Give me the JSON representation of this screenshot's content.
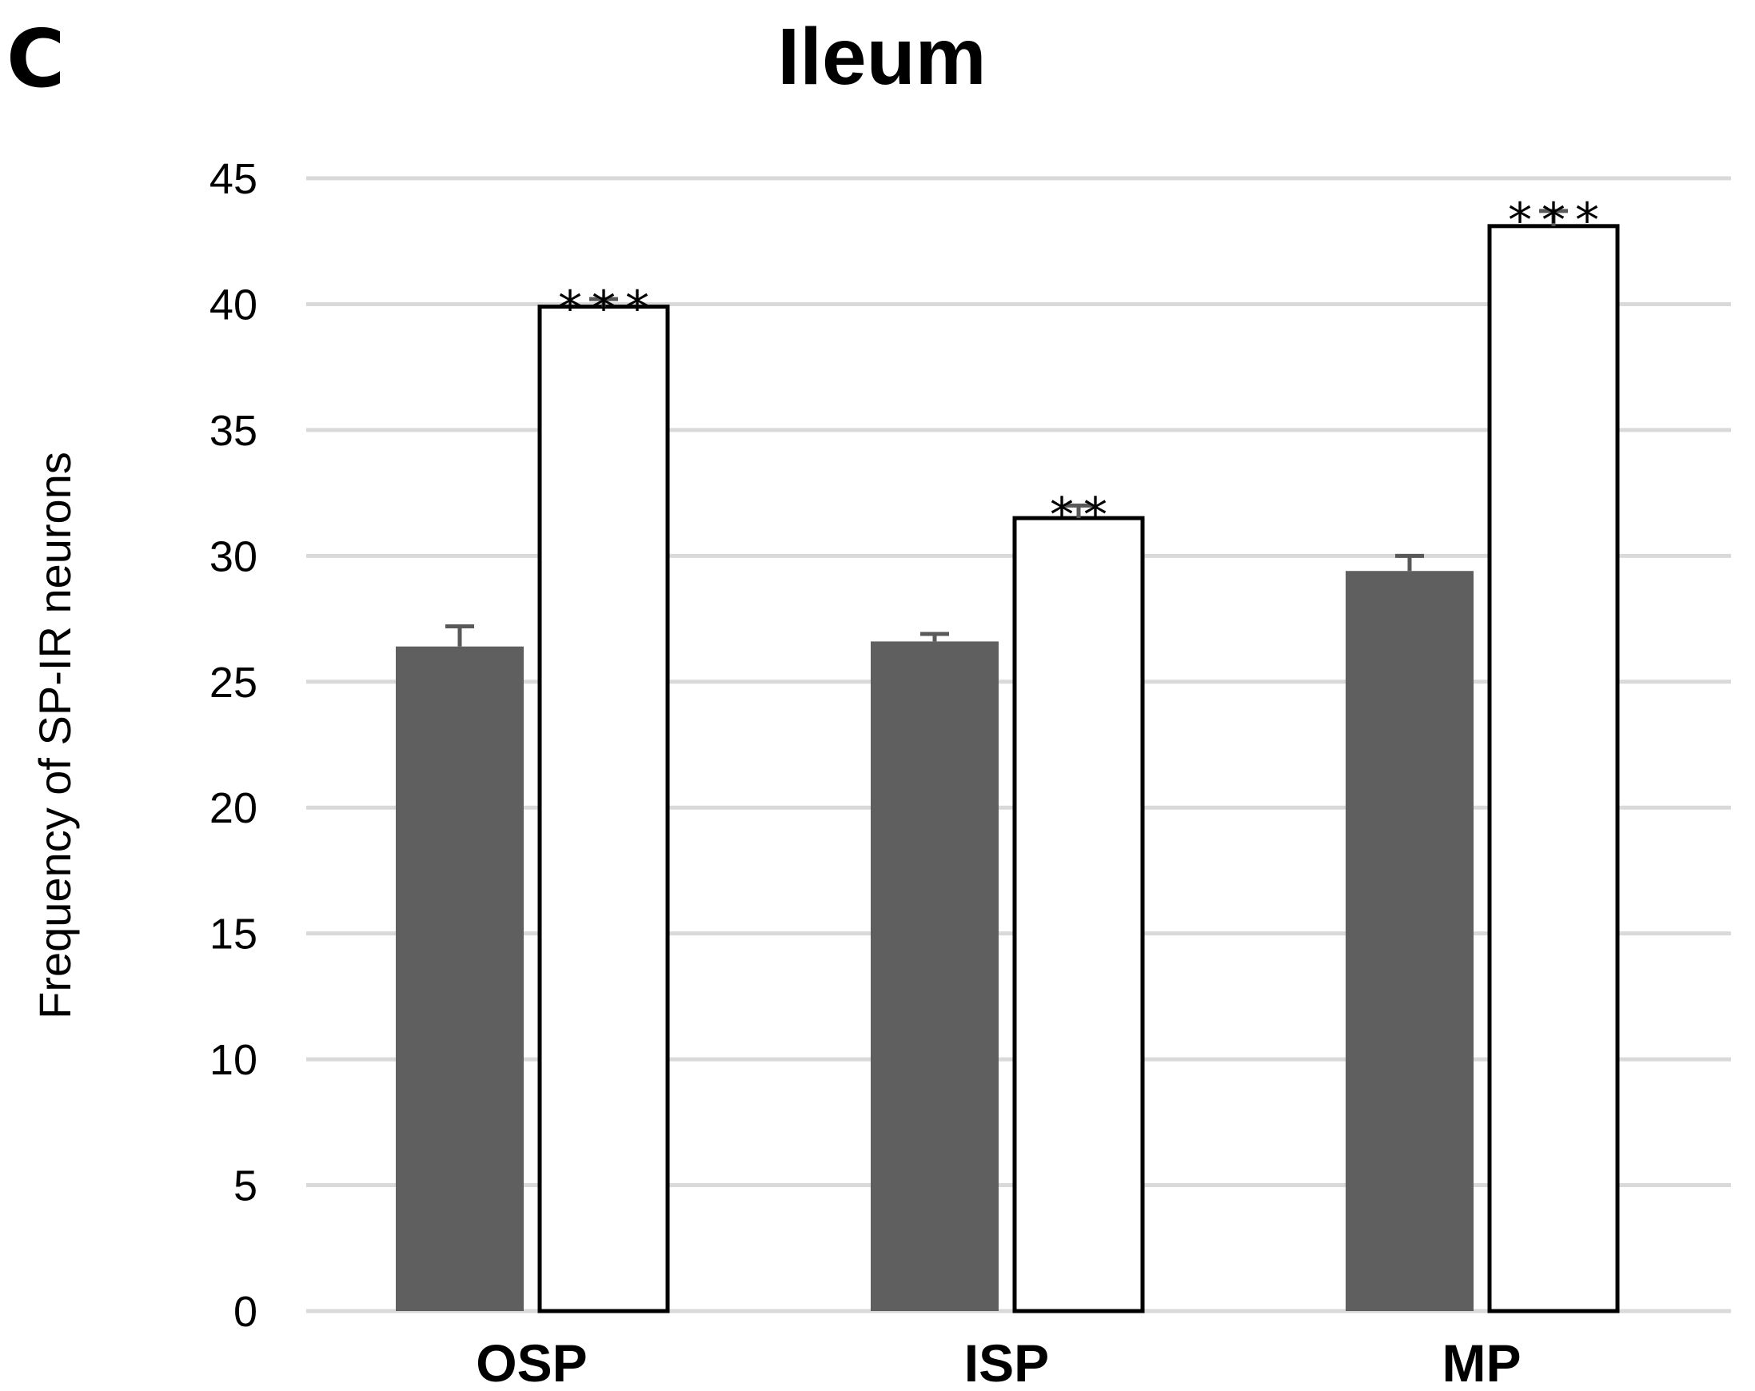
{
  "panel_label": "C",
  "chart_data": {
    "type": "bar",
    "title": "Ileum",
    "xlabel": "",
    "ylabel": "Frequency  of SP-IR neurons",
    "ylim": [
      0,
      45
    ],
    "yticks": [
      0,
      5,
      10,
      15,
      20,
      25,
      30,
      35,
      40,
      45
    ],
    "grid": true,
    "categories": [
      "OSP",
      "ISP",
      "MP"
    ],
    "series": [
      {
        "color": "#5f5f5f",
        "outline": "none",
        "values": [
          26.4,
          26.6,
          29.4
        ],
        "errors": [
          0.8,
          0.3,
          0.6
        ],
        "annotations": [
          "",
          "",
          ""
        ]
      },
      {
        "color": "#ffffff",
        "outline": "#000000",
        "values": [
          39.9,
          31.5,
          43.1
        ],
        "errors": [
          0.3,
          0.5,
          0.6
        ],
        "annotations": [
          "***",
          "**",
          "***"
        ]
      }
    ]
  }
}
